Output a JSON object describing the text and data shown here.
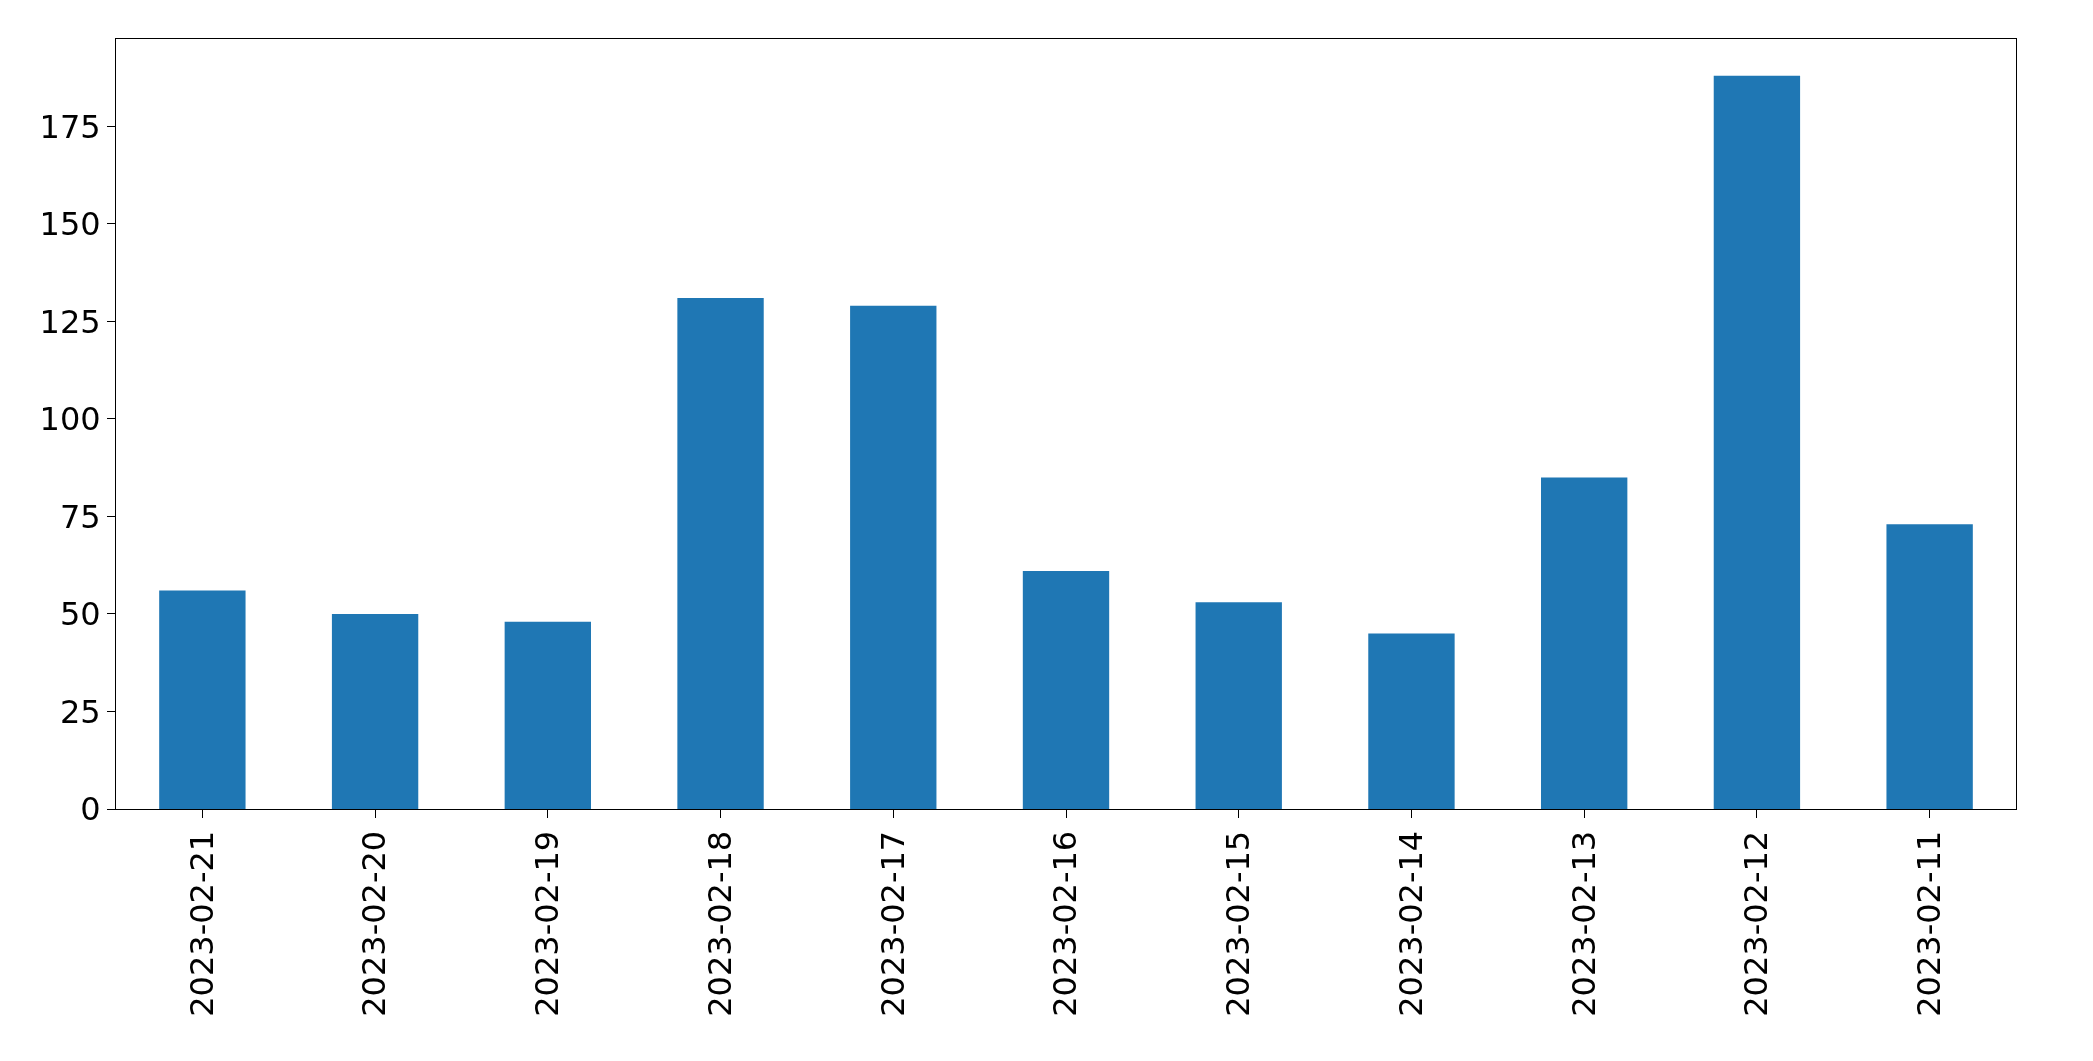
{
  "chart_data": {
    "type": "bar",
    "categories": [
      "2023-02-21",
      "2023-02-20",
      "2023-02-19",
      "2023-02-18",
      "2023-02-17",
      "2023-02-16",
      "2023-02-15",
      "2023-02-14",
      "2023-02-13",
      "2023-02-12",
      "2023-02-11"
    ],
    "values": [
      56,
      50,
      48,
      131,
      129,
      61,
      53,
      45,
      85,
      188,
      73
    ],
    "color": "#1f77b4",
    "ylim": [
      0,
      197.4
    ],
    "yticks": [
      0,
      25,
      50,
      75,
      100,
      125,
      150,
      175
    ]
  }
}
